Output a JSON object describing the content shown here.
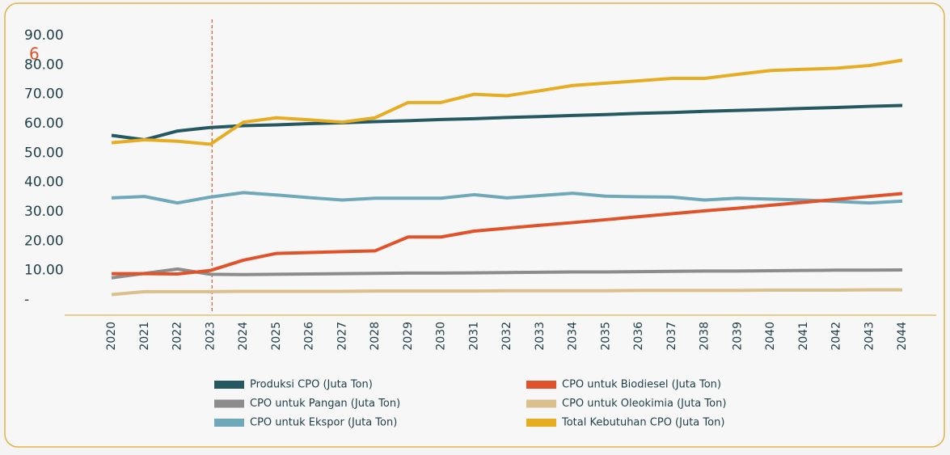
{
  "chart_data": {
    "type": "line",
    "annotation": "6",
    "categories": [
      "2020",
      "2021",
      "2022",
      "2023",
      "2024",
      "2025",
      "2026",
      "2027",
      "2028",
      "2029",
      "2030",
      "2031",
      "2032",
      "2033",
      "2034",
      "2035",
      "2036",
      "2037",
      "2038",
      "2039",
      "2040",
      "2041",
      "2042",
      "2043",
      "2044"
    ],
    "series": [
      {
        "name": "Produksi CPO (Juta Ton)",
        "color": "#255861",
        "values": [
          56,
          54.5,
          57.5,
          58.7,
          59.3,
          59.6,
          60.0,
          60.3,
          60.7,
          61.0,
          61.4,
          61.7,
          62.1,
          62.4,
          62.8,
          63.1,
          63.5,
          63.8,
          64.2,
          64.5,
          64.8,
          65.2,
          65.5,
          65.9,
          66.2
        ]
      },
      {
        "name": "CPO untuk Pangan (Juta Ton)",
        "color": "#8c8c8c",
        "values": [
          7.5,
          9,
          10.5,
          8.7,
          8.6,
          8.7,
          8.8,
          8.9,
          9.0,
          9.1,
          9.1,
          9.2,
          9.3,
          9.4,
          9.5,
          9.5,
          9.6,
          9.7,
          9.8,
          9.8,
          9.9,
          10.0,
          10.1,
          10.1,
          10.2
        ]
      },
      {
        "name": "CPO untuk Ekspor (Juta Ton)",
        "color": "#6fa8b8",
        "values": [
          34.7,
          35.2,
          33,
          35,
          36.5,
          35.7,
          34.8,
          34,
          34.6,
          34.6,
          34.6,
          35.8,
          34.7,
          35.5,
          36.3,
          35.3,
          35.1,
          35,
          34,
          34.6,
          34.3,
          34,
          33.5,
          33,
          33.6
        ]
      },
      {
        "name": "CPO untuk Biodiesel (Juta Ton)",
        "color": "#e0522a",
        "values": [
          8.9,
          8.9,
          8.8,
          10,
          13.5,
          15.8,
          16.1,
          16.4,
          16.7,
          21.4,
          21.4,
          23.4,
          24.4,
          25.4,
          26.3,
          27.3,
          28.3,
          29.3,
          30.3,
          31.2,
          32.2,
          33.2,
          34.2,
          35.2,
          36.2
        ]
      },
      {
        "name": "CPO untuk Oleokimia (Juta Ton)",
        "color": "#d9c08c",
        "values": [
          1.8,
          2.8,
          2.8,
          2.8,
          2.9,
          2.9,
          2.9,
          2.9,
          3.0,
          3.0,
          3.0,
          3.0,
          3.1,
          3.1,
          3.1,
          3.1,
          3.2,
          3.2,
          3.2,
          3.2,
          3.3,
          3.3,
          3.3,
          3.4,
          3.4
        ]
      },
      {
        "name": "Total Kebutuhan CPO (Juta Ton)",
        "color": "#e6ac22",
        "values": [
          53.5,
          54.5,
          54,
          53,
          60.5,
          62,
          61.3,
          60.5,
          62,
          67.2,
          67.2,
          70,
          69.5,
          71.2,
          73,
          73.8,
          74.6,
          75.4,
          75.4,
          76.8,
          78.1,
          78.5,
          78.9,
          79.8,
          81.6
        ]
      }
    ],
    "ylim": [
      0,
      90
    ],
    "yticks": [
      {
        "value": 0,
        "label": "-"
      },
      {
        "value": 10,
        "label": "10.00"
      },
      {
        "value": 20,
        "label": "20.00"
      },
      {
        "value": 30,
        "label": "30.00"
      },
      {
        "value": 40,
        "label": "40.00"
      },
      {
        "value": 50,
        "label": "50.00"
      },
      {
        "value": 60,
        "label": "60.00"
      },
      {
        "value": 70,
        "label": "70.00"
      },
      {
        "value": 80,
        "label": "80.00"
      },
      {
        "value": 90,
        "label": "90.00"
      }
    ],
    "reference_line": "2023"
  }
}
